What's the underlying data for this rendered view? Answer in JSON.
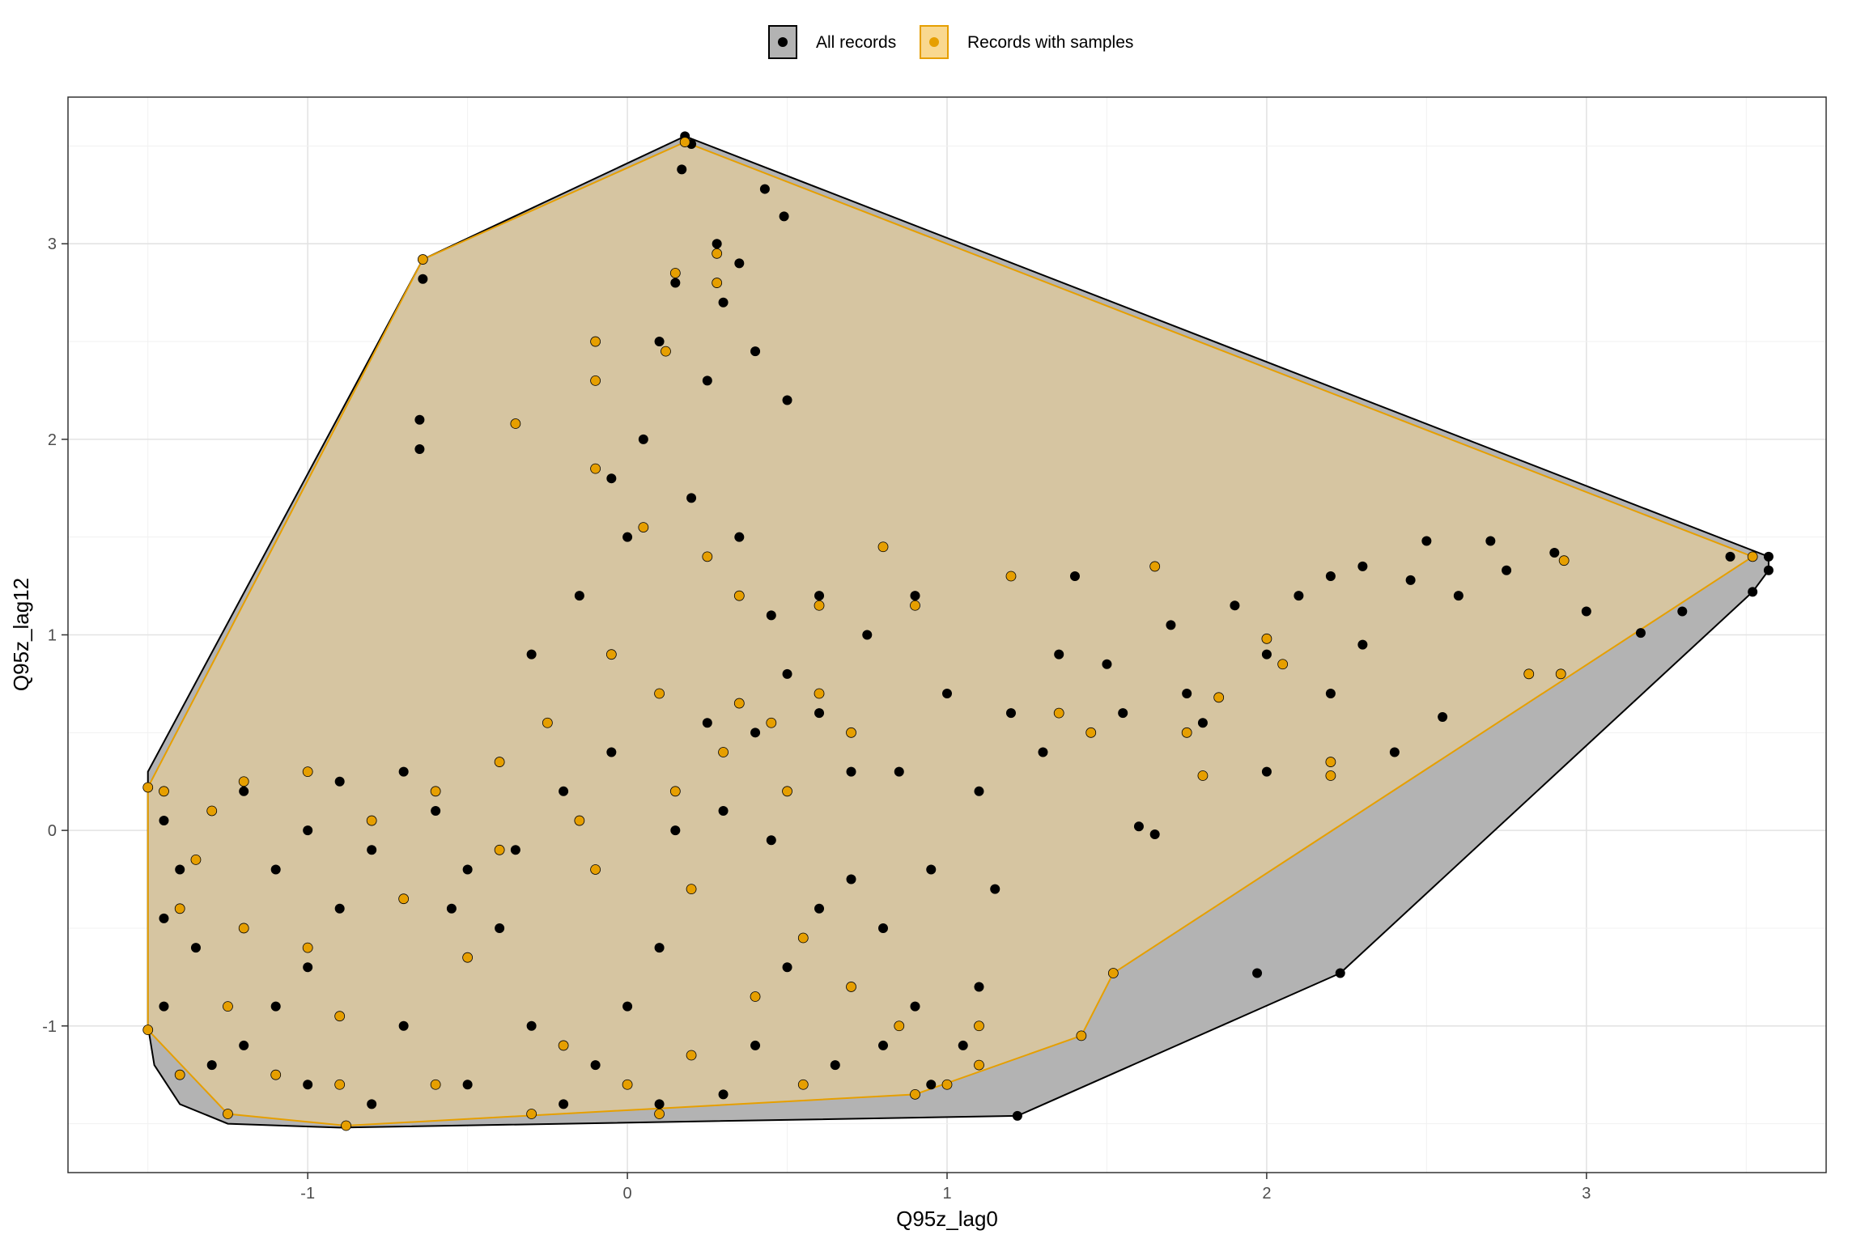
{
  "chart_data": {
    "type": "scatter",
    "title": "",
    "xlabel": "Q95z_lag0",
    "ylabel": "Q95z_lag12",
    "xlim": [
      -1.75,
      3.75
    ],
    "ylim": [
      -1.75,
      3.75
    ],
    "x_ticks": [
      -1,
      0,
      1,
      2,
      3
    ],
    "x_tick_labels": [
      "-1",
      "0",
      "1",
      "2",
      "3"
    ],
    "y_ticks": [
      -1,
      0,
      1,
      2,
      3
    ],
    "y_tick_labels": [
      "-1",
      "0",
      "1",
      "2",
      "3"
    ],
    "grid": true,
    "legend_position": "top",
    "series": [
      {
        "name": "All records",
        "color": "#000000",
        "hull_fill": "#b3b3b3",
        "hull_stroke": "#000000",
        "hull": [
          [
            -1.5,
            0.3
          ],
          [
            -1.5,
            0.15
          ],
          [
            -1.5,
            -1.0
          ],
          [
            -1.48,
            -1.2
          ],
          [
            -1.4,
            -1.4
          ],
          [
            -1.25,
            -1.5
          ],
          [
            -0.9,
            -1.52
          ],
          [
            1.22,
            -1.46
          ],
          [
            2.23,
            -0.73
          ],
          [
            3.52,
            1.22
          ],
          [
            3.57,
            1.33
          ],
          [
            3.57,
            1.4
          ],
          [
            0.18,
            3.55
          ],
          [
            -0.64,
            2.92
          ]
        ],
        "points": [
          [
            0.18,
            3.55
          ],
          [
            0.2,
            3.51
          ],
          [
            0.17,
            3.38
          ],
          [
            0.43,
            3.28
          ],
          [
            0.49,
            3.14
          ],
          [
            -0.64,
            2.82
          ],
          [
            -0.64,
            2.92
          ],
          [
            -0.65,
            2.1
          ],
          [
            -0.65,
            1.95
          ],
          [
            3.57,
            1.4
          ],
          [
            3.57,
            1.33
          ],
          [
            3.52,
            1.22
          ],
          [
            3.45,
            1.4
          ],
          [
            3.3,
            1.12
          ],
          [
            3.17,
            1.01
          ],
          [
            2.23,
            -0.73
          ],
          [
            1.97,
            -0.73
          ],
          [
            1.22,
            -1.46
          ],
          [
            1.6,
            0.02
          ],
          [
            1.65,
            -0.02
          ],
          [
            2.5,
            1.48
          ],
          [
            2.7,
            1.48
          ],
          [
            2.9,
            1.42
          ],
          [
            3.0,
            1.12
          ],
          [
            2.55,
            0.58
          ],
          [
            2.4,
            0.4
          ],
          [
            2.0,
            0.3
          ],
          [
            1.8,
            0.55
          ],
          [
            1.9,
            1.15
          ],
          [
            2.2,
            1.3
          ],
          [
            2.1,
            1.2
          ],
          [
            2.3,
            1.35
          ],
          [
            2.45,
            1.28
          ],
          [
            2.6,
            1.2
          ],
          [
            2.75,
            1.33
          ],
          [
            1.7,
            1.05
          ],
          [
            1.5,
            0.85
          ],
          [
            1.35,
            0.9
          ],
          [
            1.3,
            0.4
          ],
          [
            1.2,
            0.6
          ],
          [
            1.1,
            0.2
          ],
          [
            1.15,
            -0.3
          ],
          [
            1.1,
            -0.8
          ],
          [
            1.05,
            -1.1
          ],
          [
            0.95,
            -1.3
          ],
          [
            0.9,
            -0.9
          ],
          [
            0.8,
            -0.5
          ],
          [
            0.7,
            0.3
          ],
          [
            0.75,
            1.0
          ],
          [
            0.6,
            1.2
          ],
          [
            0.5,
            0.8
          ],
          [
            0.4,
            0.5
          ],
          [
            0.3,
            0.1
          ],
          [
            0.2,
            -0.3
          ],
          [
            0.1,
            -0.6
          ],
          [
            0.0,
            -0.9
          ],
          [
            -0.1,
            -1.2
          ],
          [
            -0.2,
            -1.4
          ],
          [
            -0.3,
            -1.0
          ],
          [
            -0.4,
            -0.5
          ],
          [
            -0.5,
            -0.2
          ],
          [
            -0.6,
            0.1
          ],
          [
            -0.7,
            0.3
          ],
          [
            -0.8,
            -0.1
          ],
          [
            -0.9,
            -0.4
          ],
          [
            -1.0,
            -0.7
          ],
          [
            -1.1,
            -0.9
          ],
          [
            -1.2,
            -1.1
          ],
          [
            -1.3,
            -1.2
          ],
          [
            -1.35,
            -0.6
          ],
          [
            -1.4,
            -0.2
          ],
          [
            -1.3,
            0.1
          ],
          [
            -1.2,
            0.2
          ],
          [
            -1.1,
            -0.2
          ],
          [
            -1.0,
            0.0
          ],
          [
            -0.9,
            0.25
          ],
          [
            0.0,
            1.5
          ],
          [
            0.05,
            2.0
          ],
          [
            -0.1,
            2.3
          ],
          [
            0.1,
            2.5
          ],
          [
            0.25,
            2.3
          ],
          [
            0.3,
            2.7
          ],
          [
            0.35,
            2.9
          ],
          [
            0.28,
            3.0
          ],
          [
            0.15,
            2.8
          ],
          [
            0.4,
            2.45
          ],
          [
            0.5,
            2.2
          ],
          [
            -0.05,
            1.8
          ],
          [
            -0.15,
            1.2
          ],
          [
            -0.3,
            0.9
          ],
          [
            0.2,
            1.7
          ],
          [
            0.35,
            1.5
          ],
          [
            0.45,
            1.1
          ],
          [
            0.6,
            0.6
          ],
          [
            0.85,
            0.3
          ],
          [
            0.95,
            -0.2
          ],
          [
            0.6,
            -0.4
          ],
          [
            0.5,
            -0.7
          ],
          [
            0.4,
            -1.1
          ],
          [
            0.3,
            -1.35
          ],
          [
            0.1,
            -1.4
          ],
          [
            -0.5,
            -1.3
          ],
          [
            -0.7,
            -1.0
          ],
          [
            -1.0,
            -1.3
          ],
          [
            -1.25,
            -1.45
          ],
          [
            -0.8,
            -1.4
          ],
          [
            0.65,
            -1.2
          ],
          [
            0.8,
            -1.1
          ],
          [
            1.0,
            0.7
          ],
          [
            0.9,
            1.2
          ],
          [
            1.4,
            1.3
          ],
          [
            2.0,
            0.9
          ],
          [
            2.2,
            0.7
          ],
          [
            2.3,
            0.95
          ],
          [
            1.75,
            0.7
          ],
          [
            1.55,
            0.6
          ],
          [
            0.25,
            0.55
          ],
          [
            -0.05,
            0.4
          ],
          [
            -0.2,
            0.2
          ],
          [
            0.15,
            0.0
          ],
          [
            -0.35,
            -0.1
          ],
          [
            -0.55,
            -0.4
          ],
          [
            0.45,
            -0.05
          ],
          [
            0.7,
            -0.25
          ],
          [
            -1.45,
            -0.9
          ],
          [
            -1.45,
            0.05
          ],
          [
            -1.45,
            -0.45
          ]
        ]
      },
      {
        "name": "Records with samples",
        "color": "#e69f00",
        "hull_fill": "#f9d88f",
        "hull_stroke": "#e69f00",
        "hull": [
          [
            -1.5,
            0.22
          ],
          [
            -1.5,
            -1.02
          ],
          [
            -1.25,
            -1.45
          ],
          [
            -0.88,
            -1.51
          ],
          [
            0.9,
            -1.35
          ],
          [
            1.42,
            -1.05
          ],
          [
            1.52,
            -0.73
          ],
          [
            3.52,
            1.4
          ],
          [
            0.18,
            3.52
          ],
          [
            -0.64,
            2.92
          ]
        ],
        "points": [
          [
            0.18,
            3.52
          ],
          [
            -0.64,
            2.92
          ],
          [
            3.52,
            1.4
          ],
          [
            1.52,
            -0.73
          ],
          [
            1.42,
            -1.05
          ],
          [
            0.9,
            -1.35
          ],
          [
            -0.88,
            -1.51
          ],
          [
            -1.25,
            -1.45
          ],
          [
            -1.5,
            -1.02
          ],
          [
            -1.5,
            0.22
          ],
          [
            2.92,
            0.8
          ],
          [
            2.82,
            0.8
          ],
          [
            2.93,
            1.38
          ],
          [
            2.0,
            0.98
          ],
          [
            2.05,
            0.85
          ],
          [
            2.2,
            0.35
          ],
          [
            2.2,
            0.28
          ],
          [
            1.85,
            0.68
          ],
          [
            1.75,
            0.5
          ],
          [
            1.8,
            0.28
          ],
          [
            1.65,
            1.35
          ],
          [
            0.28,
            2.8
          ],
          [
            0.28,
            2.95
          ],
          [
            0.15,
            2.85
          ],
          [
            0.12,
            2.45
          ],
          [
            -0.1,
            2.5
          ],
          [
            -0.1,
            2.3
          ],
          [
            -0.1,
            1.85
          ],
          [
            0.05,
            1.55
          ],
          [
            0.25,
            1.4
          ],
          [
            0.35,
            1.2
          ],
          [
            -0.35,
            2.08
          ],
          [
            0.6,
            1.15
          ],
          [
            0.8,
            1.45
          ],
          [
            0.9,
            1.15
          ],
          [
            1.2,
            1.3
          ],
          [
            1.35,
            0.6
          ],
          [
            1.45,
            0.5
          ],
          [
            0.7,
            0.5
          ],
          [
            0.6,
            0.7
          ],
          [
            0.5,
            0.2
          ],
          [
            0.3,
            0.4
          ],
          [
            0.1,
            0.7
          ],
          [
            -0.05,
            0.9
          ],
          [
            -0.25,
            0.55
          ],
          [
            -0.4,
            0.35
          ],
          [
            -0.6,
            0.2
          ],
          [
            -0.8,
            0.05
          ],
          [
            -1.0,
            0.3
          ],
          [
            -1.2,
            0.25
          ],
          [
            -1.3,
            0.1
          ],
          [
            -1.35,
            -0.15
          ],
          [
            -1.2,
            -0.5
          ],
          [
            -1.25,
            -0.9
          ],
          [
            -1.1,
            -1.25
          ],
          [
            -0.9,
            -1.3
          ],
          [
            -0.6,
            -1.3
          ],
          [
            -0.3,
            -1.45
          ],
          [
            0.0,
            -1.3
          ],
          [
            0.2,
            -1.15
          ],
          [
            0.4,
            -0.85
          ],
          [
            0.55,
            -0.55
          ],
          [
            0.2,
            -0.3
          ],
          [
            -0.1,
            -0.2
          ],
          [
            -0.4,
            -0.1
          ],
          [
            -0.7,
            -0.35
          ],
          [
            -1.0,
            -0.6
          ],
          [
            -0.2,
            -1.1
          ],
          [
            0.1,
            -1.45
          ],
          [
            0.55,
            -1.3
          ],
          [
            0.7,
            -0.8
          ],
          [
            0.85,
            -1.0
          ],
          [
            1.1,
            -1.0
          ],
          [
            1.1,
            -1.2
          ],
          [
            1.0,
            -1.3
          ],
          [
            0.35,
            0.65
          ],
          [
            0.45,
            0.55
          ],
          [
            0.15,
            0.2
          ],
          [
            -0.15,
            0.05
          ],
          [
            -0.5,
            -0.65
          ],
          [
            -0.9,
            -0.95
          ],
          [
            -1.4,
            -0.4
          ],
          [
            -1.45,
            0.2
          ],
          [
            -1.4,
            -1.25
          ]
        ]
      }
    ]
  },
  "legend": {
    "items": [
      {
        "label": "All records"
      },
      {
        "label": "Records with samples"
      }
    ]
  }
}
